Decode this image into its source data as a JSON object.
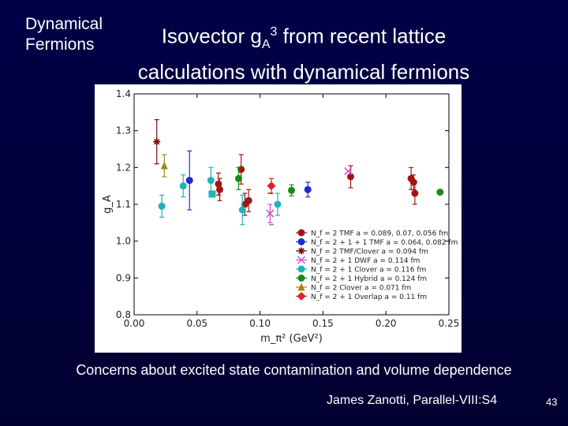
{
  "slide": {
    "side_label_line1": "Dynamical",
    "side_label_line2": "Fermions",
    "title_line1_a": "Isovector g",
    "title_line1_sub": "A",
    "title_line1_sup": "3",
    "title_line1_b": " from recent lattice",
    "title_line2": "calculations with dynamical fermions",
    "footer_note": "Concerns about excited state contamination and volume dependence",
    "author": "James Zanotti, Parallel-VIII:S4",
    "page_number": "43"
  },
  "colors": {
    "background": "#000040",
    "red": "#a31515",
    "blue": "#1c2bd4",
    "darkred": "#7a0a0a",
    "magenta": "#d24fd0",
    "cyan": "#1fb3b8",
    "green": "#1b8a1b",
    "olive": "#a08a12",
    "brightred": "#e0202a"
  },
  "chart_data": {
    "type": "scatter",
    "xlabel": "m_π² (GeV²)",
    "ylabel": "g_A",
    "xlim": [
      0.0,
      0.25
    ],
    "ylim": [
      0.8,
      1.4
    ],
    "xticks": [
      "0.00",
      "0.05",
      "0.10",
      "0.15",
      "0.20",
      "0.25"
    ],
    "yticks": [
      "0.8",
      "0.9",
      "1.0",
      "1.1",
      "1.2",
      "1.3",
      "1.4"
    ],
    "legend_position": "lower-right",
    "series": [
      {
        "name": "N_f = 2 TMF a = 0.089, 0.07, 0.056 fm",
        "marker": "circle",
        "color_key": "red",
        "points": [
          {
            "x": 0.067,
            "y": 1.155,
            "err": 0.03
          },
          {
            "x": 0.068,
            "y": 1.14,
            "err": 0.03
          },
          {
            "x": 0.085,
            "y": 1.195,
            "err": 0.04
          },
          {
            "x": 0.088,
            "y": 1.1,
            "err": 0.03
          },
          {
            "x": 0.091,
            "y": 1.11,
            "err": 0.03
          },
          {
            "x": 0.172,
            "y": 1.175,
            "err": 0.03
          },
          {
            "x": 0.22,
            "y": 1.17,
            "err": 0.03
          },
          {
            "x": 0.222,
            "y": 1.16,
            "err": 0.02
          },
          {
            "x": 0.223,
            "y": 1.13,
            "err": 0.03
          }
        ]
      },
      {
        "name": "N_f = 2 + 1 + 1 TMF a = 0.064, 0.082 fm",
        "marker": "circle",
        "color_key": "blue",
        "points": [
          {
            "x": 0.044,
            "y": 1.165,
            "err": 0.08
          },
          {
            "x": 0.138,
            "y": 1.14,
            "err": 0.02
          }
        ]
      },
      {
        "name": "N_f = 2 TMF/Clover a = 0.094 fm",
        "marker": "star",
        "color_key": "darkred",
        "points": [
          {
            "x": 0.018,
            "y": 1.27,
            "err": 0.06
          }
        ]
      },
      {
        "name": "N_f = 2 + 1 DWF a = 0.114 fm",
        "marker": "x",
        "color_key": "magenta",
        "points": [
          {
            "x": 0.108,
            "y": 1.075,
            "err": 0.025
          },
          {
            "x": 0.17,
            "y": 1.19,
            "err": 0.0
          }
        ]
      },
      {
        "name": "N_f = 2 + 1 Clover a = 0.116 fm",
        "marker": "circle",
        "color_key": "cyan",
        "points": [
          {
            "x": 0.022,
            "y": 1.095,
            "err": 0.03
          },
          {
            "x": 0.039,
            "y": 1.15,
            "err": 0.03
          },
          {
            "x": 0.061,
            "y": 1.165,
            "err": 0.035
          },
          {
            "x": 0.086,
            "y": 1.085,
            "err": 0.04
          },
          {
            "x": 0.114,
            "y": 1.1,
            "err": 0.03
          }
        ]
      },
      {
        "name": "N_f = 2 + 1 Hybrid a = 0.124 fm",
        "marker": "circle",
        "color_key": "green",
        "points": [
          {
            "x": 0.083,
            "y": 1.17,
            "err": 0.03
          },
          {
            "x": 0.125,
            "y": 1.138,
            "err": 0.015
          },
          {
            "x": 0.243,
            "y": 1.133,
            "err": 0.005
          }
        ]
      },
      {
        "name": "N_f = 2 Clover a = 0.071 fm",
        "marker": "triangle",
        "color_key": "olive",
        "points": [
          {
            "x": 0.024,
            "y": 1.205,
            "err": 0.03
          }
        ]
      },
      {
        "name": "N_f = 2 + 1 Overlap a = 0.11 fm",
        "marker": "diamond",
        "color_key": "brightred",
        "points": [
          {
            "x": 0.109,
            "y": 1.15,
            "err": 0.02
          }
        ]
      }
    ],
    "extra_marks": [
      {
        "color_key": "cyan",
        "marker": "square",
        "x": 0.062,
        "y": 1.128
      },
      {
        "color_key": "magenta",
        "marker": "dash",
        "x": 0.109,
        "y": 1.045
      },
      {
        "color_key": "red",
        "marker": "dash",
        "x": 0.108,
        "y": 1.13
      }
    ]
  }
}
